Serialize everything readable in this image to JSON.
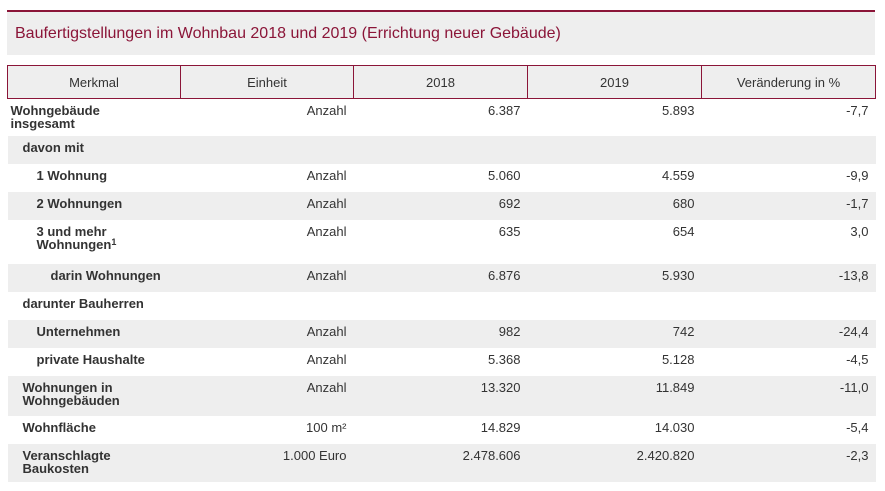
{
  "title": "Baufertigstellungen im Wohnbau 2018 und 2019 (Errichtung neuer Gebäude)",
  "table": {
    "header": [
      "Merkmal",
      "Einheit",
      "2018",
      "2019",
      "Veränderung in %"
    ],
    "rows": [
      [
        "Wohngebäude insgesamt",
        "Anzahl",
        "6.387",
        "5.893",
        "-7,7"
      ],
      [
        "davon mit"
      ],
      [
        "1 Wohnung",
        "Anzahl",
        "5.060",
        "4.559",
        "-9,9"
      ],
      [
        "2 Wohnungen",
        "Anzahl",
        "692",
        "680",
        "-1,7"
      ],
      [
        {
          "text": "3 und mehr Wohnungen",
          "sup": "1"
        },
        "Anzahl",
        "635",
        "654",
        "3,0"
      ],
      [
        "darin Wohnungen",
        "Anzahl",
        "6.876",
        "5.930",
        "-13,8"
      ],
      [
        "darunter Bauherren"
      ],
      [
        "Unternehmen",
        "Anzahl",
        "982",
        "742",
        "-24,4"
      ],
      [
        "private Haushalte",
        "Anzahl",
        "5.368",
        "5.128",
        "-4,5"
      ],
      [
        "Wohnungen in Wohngebäuden",
        "Anzahl",
        "13.320",
        "11.849",
        "-11,0"
      ],
      [
        "Wohnfläche",
        "100 m²",
        "14.829",
        "14.030",
        "-5,4"
      ],
      [
        "Veranschlagte Baukosten",
        "1.000 Euro",
        "2.478.606",
        "2.420.820",
        "-2,3"
      ]
    ]
  }
}
